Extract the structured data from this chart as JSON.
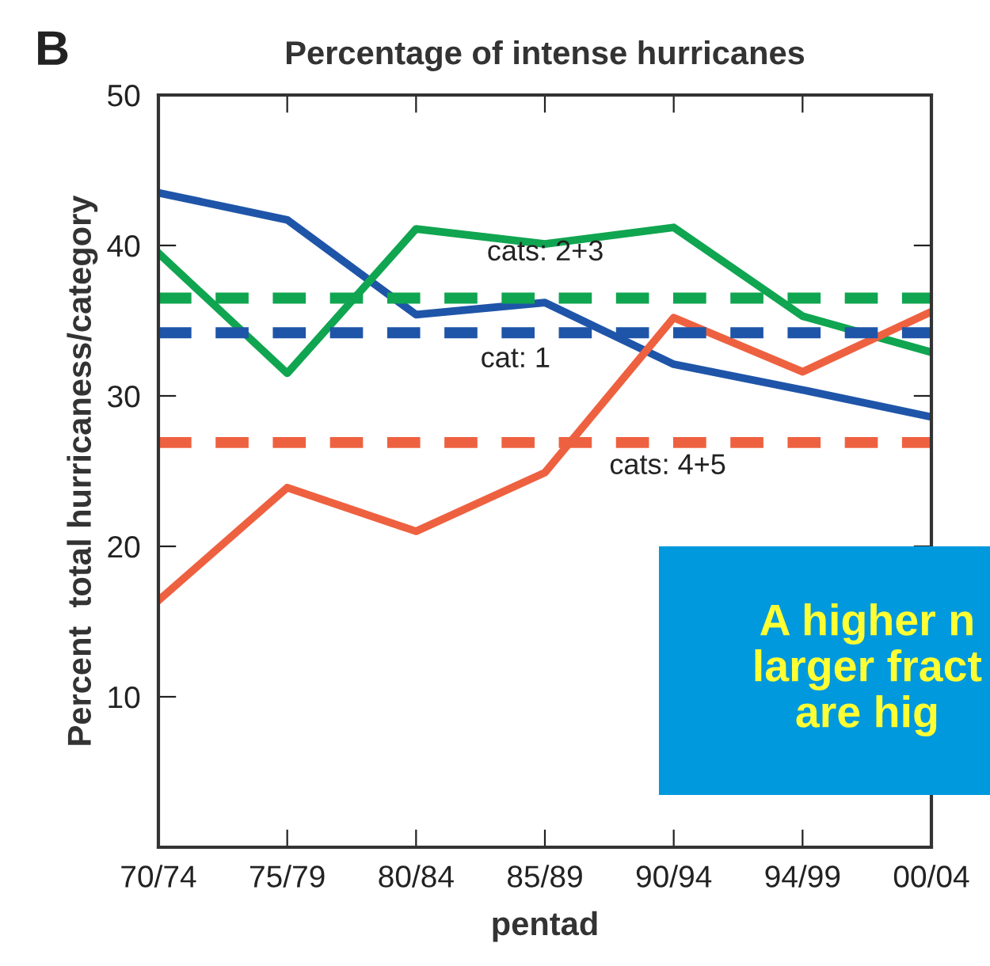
{
  "chart_data": {
    "type": "line",
    "title": "Percentage of intense hurricanes",
    "xlabel": "pentad",
    "ylabel": "Percent  total hurricaness/category",
    "categories": [
      "70/74",
      "75/79",
      "80/84",
      "85/89",
      "90/94",
      "94/99",
      "00/04"
    ],
    "series": [
      {
        "color": "#1f55a8",
        "values": [
          43.5,
          41.7,
          35.4,
          36.2,
          32.1,
          30.4,
          28.6
        ]
      },
      {
        "color": "#10a550",
        "values": [
          39.5,
          31.5,
          41.1,
          40.1,
          41.2,
          35.3,
          32.9
        ]
      },
      {
        "color": "#ee6140",
        "values": [
          16.4,
          23.9,
          21.0,
          24.9,
          35.2,
          31.6,
          35.6
        ]
      }
    ],
    "ref_lines": [
      {
        "axis": "y",
        "value": 34.2,
        "color": "#1f55a8",
        "line_style": "dashed"
      },
      {
        "axis": "y",
        "value": 36.5,
        "color": "#10a550",
        "line_style": "dashed"
      },
      {
        "axis": "y",
        "value": 26.9,
        "color": "#ee6140",
        "line_style": "dashed"
      }
    ],
    "ylim": [
      0,
      50
    ],
    "yticks": [
      10,
      20,
      30,
      40,
      50
    ],
    "grid": false,
    "legend": false,
    "marker": "none",
    "line_style": "solid",
    "annotations": [
      "B",
      "A higher n\nlarger fract\nare hig",
      {
        "text": "cat: 1",
        "y": 34.2
      },
      {
        "text": "cats: 2+3",
        "y": 36.5
      },
      {
        "text": "cats: 4+5",
        "y": 26.9
      }
    ]
  }
}
